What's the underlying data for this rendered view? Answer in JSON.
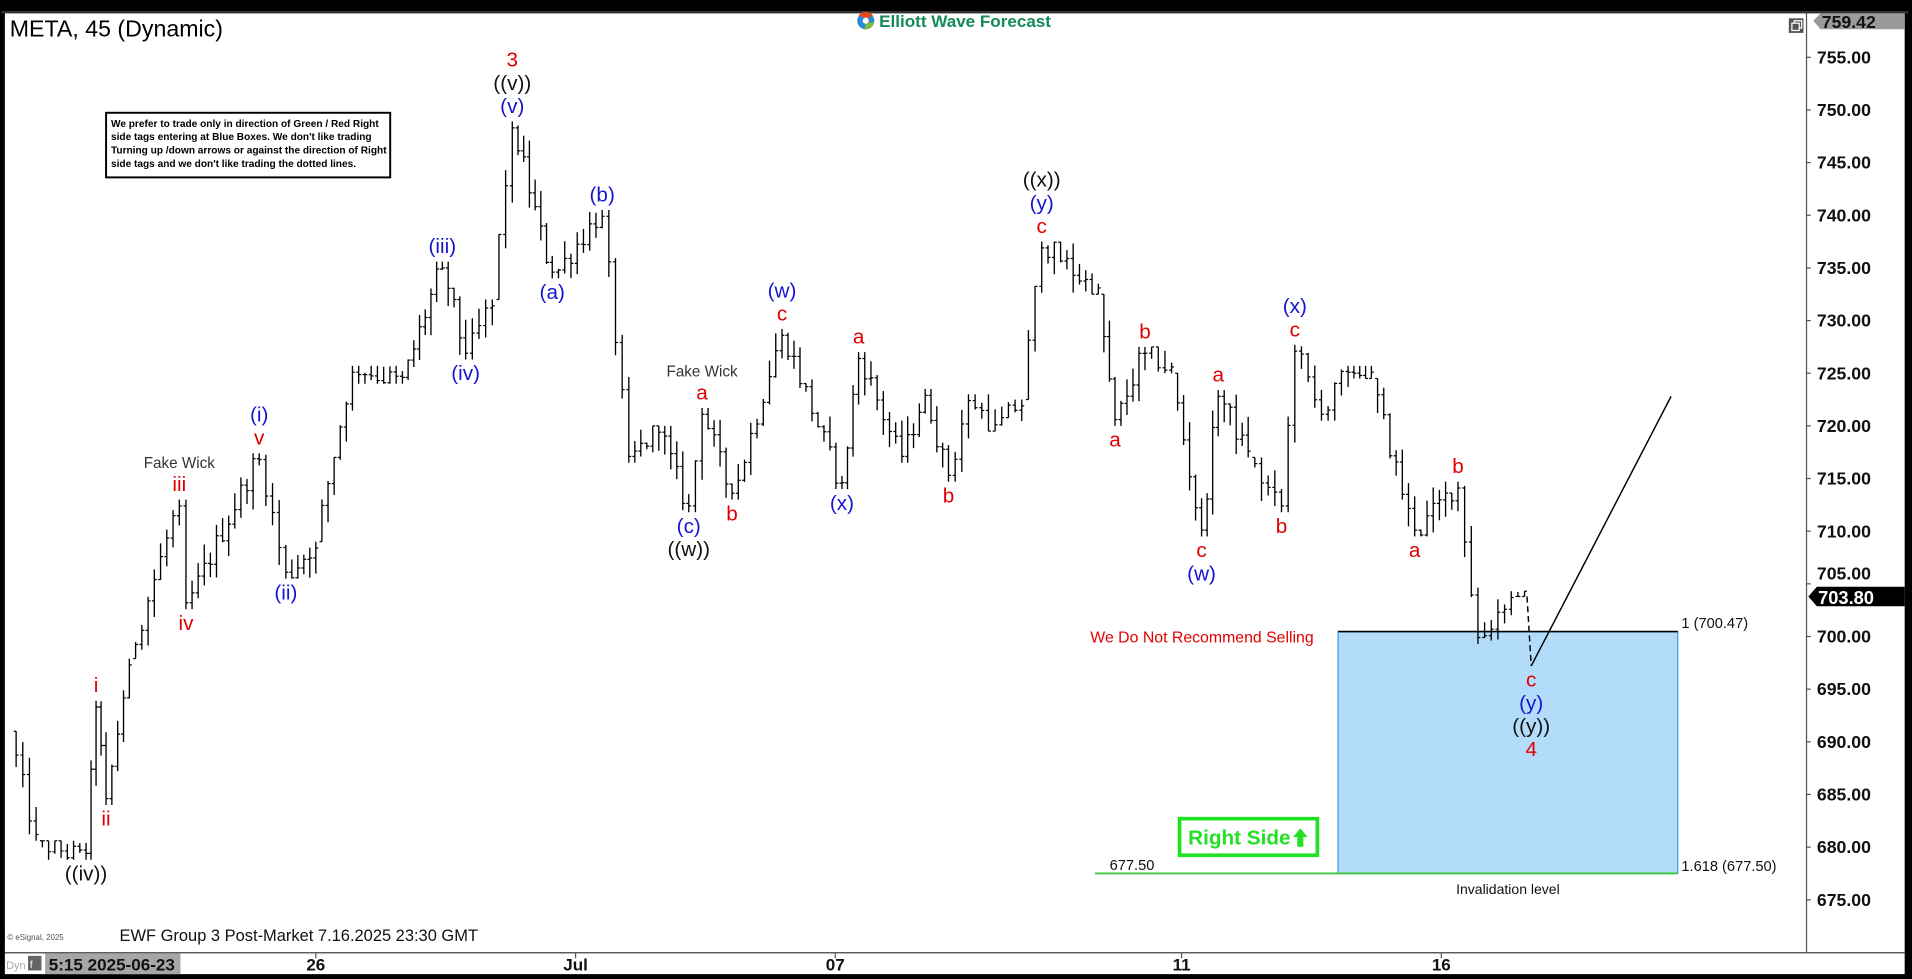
{
  "window": {
    "title": "META, 45 (Dynamic)",
    "logo_text": "Elliott Wave Forecast",
    "restore_icon": "restore-window-icon",
    "copyright": "© eSignal, 2025",
    "footer_note": "EWF Group 3 Post-Market 7.16.2025 23:30 GMT",
    "notice_lines": [
      "We prefer to trade only in direction of Green / Red Right",
      "side tags entering at Blue Boxes. We don't like trading",
      "Turning up /down arrows or against the direction of Right",
      "side tags and we don't like trading the dotted lines."
    ],
    "time_axis": {
      "mode": "Dyn",
      "lock_icon": "lock-icon",
      "cursor_readout": "5:15 2025-06-23"
    }
  },
  "colors": {
    "red": "#e00000",
    "blue": "#1414d2",
    "black": "#111111",
    "gray": "#333333",
    "box_fill": "#b3dcfb",
    "box_border": "#3a98e0",
    "right_side_green": "#22e022",
    "invalidation_green": "#3cc63c"
  },
  "chart_data": {
    "type": "ohlc",
    "symbol": "META",
    "interval": "45",
    "ylim": [
      673,
      760
    ],
    "y_ticks": [
      "675.00",
      "680.00",
      "685.00",
      "690.00",
      "695.00",
      "700.00",
      "705.00",
      "710.00",
      "715.00",
      "720.00",
      "725.00",
      "730.00",
      "735.00",
      "740.00",
      "745.00",
      "750.00",
      "755.00"
    ],
    "top_price_tag": "759.42",
    "last_price_tag": "703.80",
    "x_ticks": [
      {
        "label": "26",
        "date": "2025-06-26"
      },
      {
        "label": "Jul",
        "date": "2025-07-01"
      },
      {
        "label": "07",
        "date": "2025-07-07"
      },
      {
        "label": "11",
        "date": "2025-07-11"
      },
      {
        "label": "16",
        "date": "2025-07-16"
      }
    ],
    "price_path": [
      {
        "t": "2025-06-20 12:30",
        "p": 691.0
      },
      {
        "t": "2025-06-20 14:30",
        "p": 680.6
      },
      {
        "t": "2025-06-23 11:45",
        "p": 678.8,
        "labels": [
          {
            "text": "((iv))",
            "color": "black"
          }
        ]
      },
      {
        "t": "2025-06-23 12:30",
        "p": 693.9,
        "labels": [
          {
            "text": "i",
            "color": "red"
          }
        ]
      },
      {
        "t": "2025-06-23 13:15",
        "p": 684.0,
        "labels": [
          {
            "text": "ii",
            "color": "red"
          }
        ]
      },
      {
        "t": "2025-06-23 15:00",
        "p": 697.9
      },
      {
        "t": "2025-06-24 12:15",
        "p": 713.0,
        "labels": [
          {
            "text": "iii",
            "color": "red"
          },
          {
            "text": "Fake Wick",
            "color": "gray"
          }
        ]
      },
      {
        "t": "2025-06-24 12:45",
        "p": 702.6,
        "labels": [
          {
            "text": "iv",
            "color": "red"
          }
        ]
      },
      {
        "t": "2025-06-25 11:45",
        "p": 717.4,
        "labels": [
          {
            "text": "v",
            "color": "red"
          },
          {
            "text": "(i)",
            "color": "blue"
          }
        ]
      },
      {
        "t": "2025-06-25 13:45",
        "p": 705.5,
        "labels": [
          {
            "text": "(ii)",
            "color": "blue"
          }
        ]
      },
      {
        "t": "2025-06-26 09:30",
        "p": 709.0
      },
      {
        "t": "2025-06-26 12:15",
        "p": 725.7
      },
      {
        "t": "2025-06-27 09:30",
        "p": 724.0
      },
      {
        "t": "2025-06-27 12:30",
        "p": 735.6,
        "labels": [
          {
            "text": "(iii)",
            "color": "blue"
          }
        ]
      },
      {
        "t": "2025-06-27 14:15",
        "p": 726.3,
        "labels": [
          {
            "text": "(iv)",
            "color": "blue"
          }
        ]
      },
      {
        "t": "2025-06-30 09:45",
        "p": 732.0
      },
      {
        "t": "2025-06-30 11:15",
        "p": 748.9,
        "labels": [
          {
            "text": "(v)",
            "color": "blue"
          },
          {
            "text": "((v))",
            "color": "black"
          },
          {
            "text": "3",
            "color": "red"
          }
        ]
      },
      {
        "t": "2025-06-30 14:15",
        "p": 734.0,
        "labels": [
          {
            "text": "(a)",
            "color": "blue"
          }
        ]
      },
      {
        "t": "2025-07-01 11:30",
        "p": 740.5,
        "labels": [
          {
            "text": "(b)",
            "color": "blue"
          }
        ]
      },
      {
        "t": "2025-07-01 13:30",
        "p": 716.5
      },
      {
        "t": "2025-07-01 15:45",
        "p": 720.0
      },
      {
        "t": "2025-07-02 11:30",
        "p": 711.8,
        "labels": [
          {
            "text": "(c)",
            "color": "blue"
          },
          {
            "text": "((w))",
            "color": "black"
          }
        ]
      },
      {
        "t": "2025-07-02 12:30",
        "p": 721.7,
        "labels": [
          {
            "text": "a",
            "color": "red"
          },
          {
            "text": "Fake Wick",
            "color": "gray"
          }
        ]
      },
      {
        "t": "2025-07-02 14:45",
        "p": 713.0,
        "labels": [
          {
            "text": "b",
            "color": "red"
          }
        ]
      },
      {
        "t": "2025-07-03 12:00",
        "p": 729.2,
        "labels": [
          {
            "text": "c",
            "color": "red"
          },
          {
            "text": "(w)",
            "color": "blue"
          }
        ]
      },
      {
        "t": "2025-07-07 10:00",
        "p": 714.0,
        "labels": [
          {
            "text": "(x)",
            "color": "blue"
          }
        ]
      },
      {
        "t": "2025-07-07 11:15",
        "p": 727.0,
        "labels": [
          {
            "text": "a",
            "color": "red"
          }
        ]
      },
      {
        "t": "2025-07-07 14:30",
        "p": 716.5
      },
      {
        "t": "2025-07-08 09:45",
        "p": 723.5
      },
      {
        "t": "2025-07-08 11:30",
        "p": 714.7,
        "labels": [
          {
            "text": "b",
            "color": "red"
          }
        ]
      },
      {
        "t": "2025-07-08 13:00",
        "p": 723.0
      },
      {
        "t": "2025-07-08 15:00",
        "p": 719.5
      },
      {
        "t": "2025-07-09 10:30",
        "p": 722.5
      },
      {
        "t": "2025-07-09 12:00",
        "p": 737.5,
        "labels": [
          {
            "text": "c",
            "color": "red"
          },
          {
            "text": "(y)",
            "color": "blue"
          },
          {
            "text": "((x))",
            "color": "black"
          }
        ]
      },
      {
        "t": "2025-07-10 09:45",
        "p": 732.5
      },
      {
        "t": "2025-07-10 11:00",
        "p": 720.0,
        "labels": [
          {
            "text": "a",
            "color": "red"
          }
        ]
      },
      {
        "t": "2025-07-10 13:15",
        "p": 727.5,
        "labels": [
          {
            "text": "b",
            "color": "red"
          }
        ]
      },
      {
        "t": "2025-07-10 15:15",
        "p": 725.0
      },
      {
        "t": "2025-07-11 11:00",
        "p": 709.5,
        "labels": [
          {
            "text": "c",
            "color": "red"
          },
          {
            "text": "(w)",
            "color": "blue"
          }
        ]
      },
      {
        "t": "2025-07-11 12:15",
        "p": 723.4,
        "labels": [
          {
            "text": "a",
            "color": "red"
          }
        ]
      },
      {
        "t": "2025-07-11 14:30",
        "p": 717.0
      },
      {
        "t": "2025-07-14 10:30",
        "p": 711.8,
        "labels": [
          {
            "text": "b",
            "color": "red"
          }
        ]
      },
      {
        "t": "2025-07-14 11:30",
        "p": 727.7,
        "labels": [
          {
            "text": "c",
            "color": "red"
          },
          {
            "text": "(x)",
            "color": "blue"
          }
        ]
      },
      {
        "t": "2025-07-14 13:30",
        "p": 720.5
      },
      {
        "t": "2025-07-14 15:30",
        "p": 725.7
      },
      {
        "t": "2025-07-15 10:45",
        "p": 724.5
      },
      {
        "t": "2025-07-15 14:00",
        "p": 709.5,
        "labels": [
          {
            "text": "a",
            "color": "red"
          }
        ]
      },
      {
        "t": "2025-07-16 10:45",
        "p": 714.7,
        "labels": [
          {
            "text": "b",
            "color": "red"
          }
        ]
      },
      {
        "t": "2025-07-16 12:15",
        "p": 699.3
      },
      {
        "t": "2025-07-16 14:45",
        "p": 704.3
      },
      {
        "t": "2025-07-16 15:45",
        "p": 703.8
      }
    ],
    "projection": {
      "dashed_to": {
        "t": "2025-07-17 09:45",
        "p": 697.2,
        "labels": [
          {
            "text": "c",
            "color": "red"
          },
          {
            "text": "(y)",
            "color": "blue"
          },
          {
            "text": "((y))",
            "color": "black"
          },
          {
            "text": "4",
            "color": "red"
          }
        ]
      },
      "solid_to": {
        "t": "2025-07-18 13:45",
        "p": 722.8
      }
    },
    "blue_box": {
      "t_start": "2025-07-14 14:45",
      "t_end": "2025-07-18 14:15",
      "top": 700.47,
      "bottom": 677.5,
      "top_label": "1 (700.47)",
      "bottom_label": "1.618 (677.50)",
      "below_label": "Invalidation level"
    },
    "invalidation_line": {
      "t_start": "2025-07-10 09:30",
      "price": 677.5,
      "label": "677.50"
    },
    "annotations": {
      "no_selling": "We Do Not Recommend Selling",
      "right_side": "Right Side",
      "right_side_icon": "arrow-up-icon"
    }
  }
}
